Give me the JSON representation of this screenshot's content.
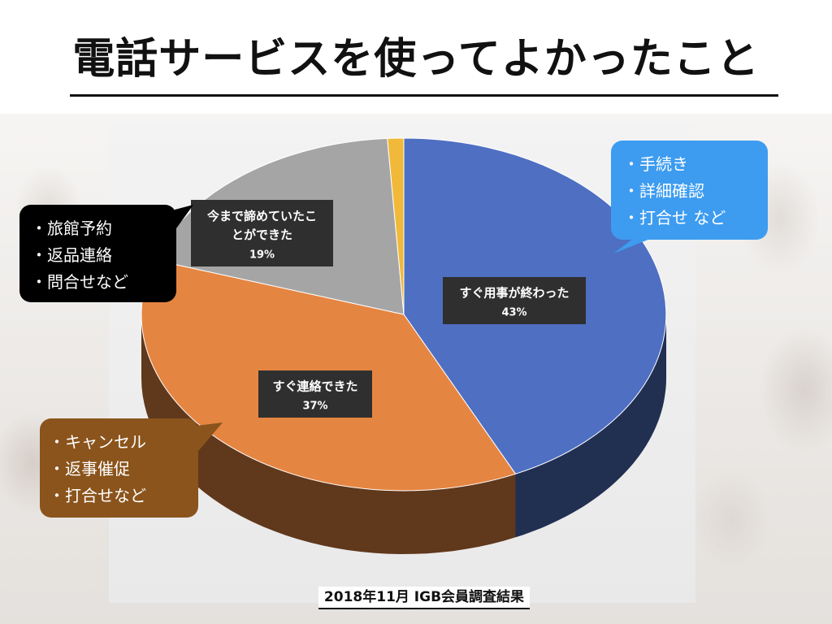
{
  "slide": {
    "title": "電話サービスを使ってよかったこと",
    "source": "2018年11月 IGB会員調査結果"
  },
  "callouts": [
    {
      "id": "blue",
      "color": "#3d9cf0",
      "items": [
        "・手続き",
        "・詳細確認",
        "・打合せ など"
      ]
    },
    {
      "id": "black",
      "color": "#000000",
      "items": [
        "・旅館予約",
        "・返品連絡",
        "・問合せなど"
      ]
    },
    {
      "id": "brown",
      "color": "#8a541c",
      "items": [
        "・キャンセル",
        "・返事催促",
        "・打合せなど"
      ]
    }
  ],
  "chart_data": {
    "type": "pie",
    "title": "",
    "categories": [
      "すぐ用事が終わった",
      "すぐ連絡できた",
      "今まで諦めていたことができた",
      ""
    ],
    "values": [
      43,
      37,
      19,
      1
    ],
    "colors": [
      "#4e6fc2",
      "#e58542",
      "#a5a5a5",
      "#f0b93a"
    ],
    "data_labels": [
      {
        "lines": [
          "すぐ用事が終わった",
          "43%"
        ]
      },
      {
        "lines": [
          "すぐ連絡できた",
          "37%"
        ]
      },
      {
        "lines": [
          "今まで諦めていたこ",
          "とができた",
          "19%"
        ]
      },
      null
    ],
    "style": "3d"
  }
}
